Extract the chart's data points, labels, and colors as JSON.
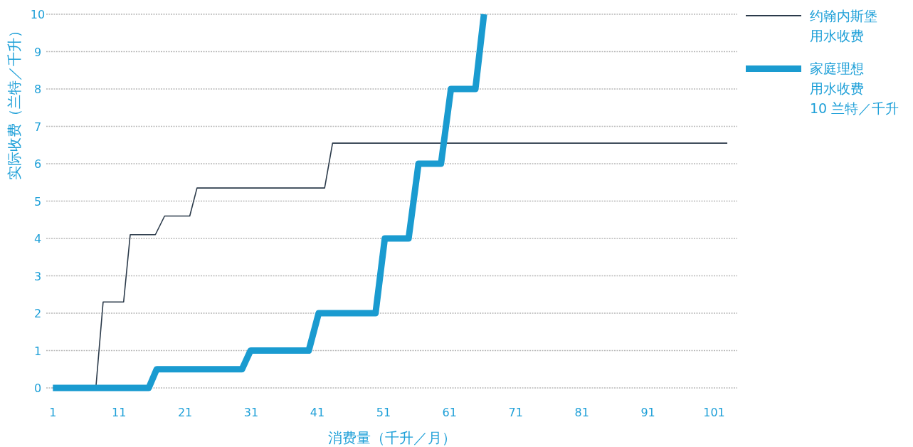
{
  "chart_data": {
    "type": "line",
    "xlabel": "消费量（千升／月）",
    "ylabel": "实际收费（兰特／千升）",
    "xlim": [
      0,
      104.5
    ],
    "ylim": [
      0,
      10
    ],
    "xticks": [
      1,
      11,
      21,
      31,
      41,
      51,
      61,
      71,
      81,
      91,
      101
    ],
    "yticks": [
      0,
      1,
      2,
      3,
      4,
      5,
      6,
      7,
      8,
      9,
      10
    ],
    "grid": "y",
    "legend": "right",
    "series": [
      {
        "name": "约翰内斯堡用水收费",
        "color": "#2b3a4a",
        "x": [
          1,
          7.5,
          8.6,
          11.7,
          12.7,
          16.5,
          17.9,
          21.7,
          22.8,
          42.1,
          43.3,
          103
        ],
        "values": [
          0,
          0,
          2.3,
          2.3,
          4.1,
          4.1,
          4.6,
          4.6,
          5.35,
          5.35,
          6.55,
          6.55
        ]
      },
      {
        "name": "家庭理想用水收费\n10 兰特／千升",
        "color": "#1a9bd0",
        "x": [
          1,
          15.5,
          16.7,
          29.6,
          30.9,
          39.7,
          41.2,
          49.8,
          51.2,
          54.8,
          56.3,
          59.7,
          61.2,
          64.9,
          66.2
        ],
        "values": [
          0,
          0,
          0.5,
          0.5,
          1,
          1,
          2,
          2,
          4,
          4,
          6,
          6,
          8,
          8,
          10
        ]
      }
    ]
  }
}
